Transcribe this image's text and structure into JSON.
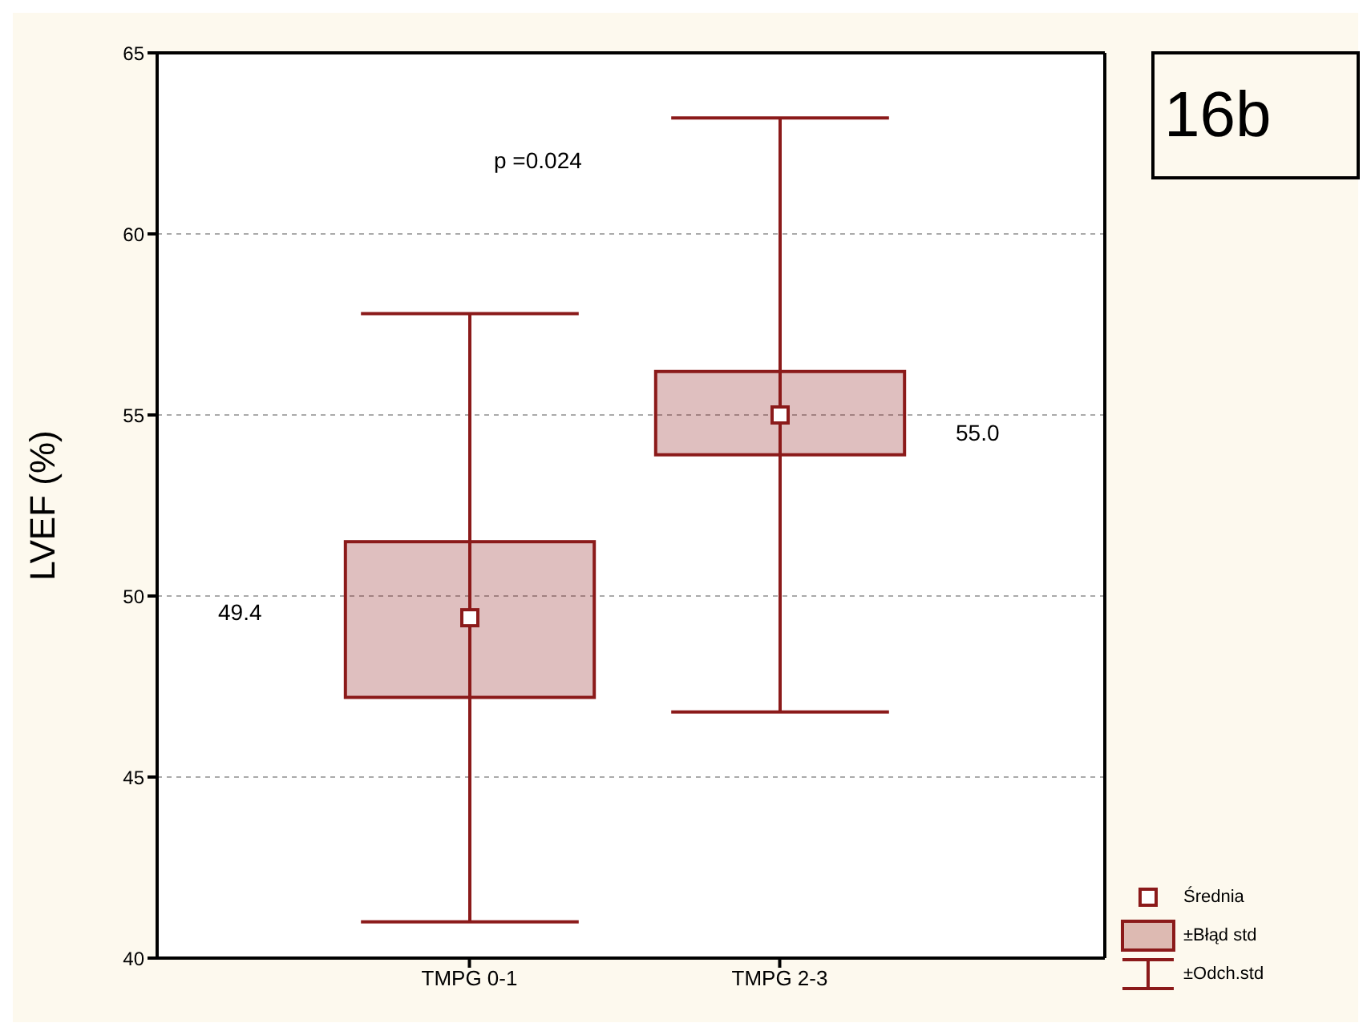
{
  "chart_data": {
    "type": "box",
    "ylabel": "LVEF (%)",
    "categories": [
      "TMPG 0-1",
      "TMPG 2-3"
    ],
    "series": [
      {
        "color": "#8b1a1a",
        "boxes": [
          {
            "low": 41.0,
            "q1": 47.2,
            "median": 49.4,
            "q3": 51.5,
            "high": 57.8
          },
          {
            "low": 46.8,
            "q1": 53.9,
            "median": 55.0,
            "q3": 56.2,
            "high": 63.2
          }
        ]
      }
    ],
    "ylim": [
      40,
      65
    ],
    "yticks": [
      40,
      45,
      50,
      55,
      60,
      65
    ],
    "grid": "y",
    "marker": "square",
    "annotations": [
      "p =0.024",
      "16b",
      "49.4",
      "55.0",
      "Średnia",
      "±Błąd std",
      "±Odch.std"
    ]
  }
}
